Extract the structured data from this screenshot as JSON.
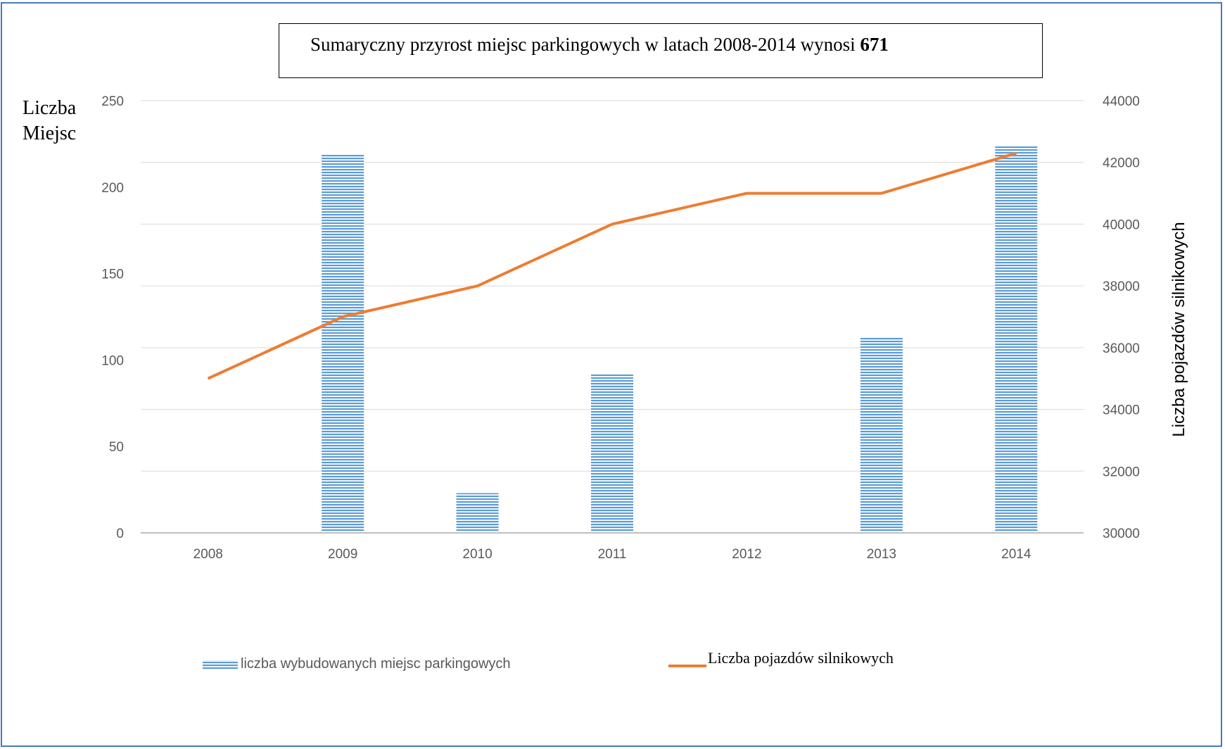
{
  "header": {
    "title_prefix": "Sumaryczny przyrost miejsc parkingowych w latach 2008-2014 wynosi ",
    "title_value": "671"
  },
  "axes": {
    "left_title_line1": "Liczba",
    "left_title_line2": "Miejsc",
    "right_title": "Liczba pojazdów silnikowych"
  },
  "legend": {
    "bar_label": "liczba wybudowanych miejsc parkingowych",
    "line_label": "Liczba  pojazdów   silnikowych"
  },
  "colors": {
    "bar": "#5b9bd5",
    "line": "#ed7d31",
    "grid": "#d9d9d9",
    "axis": "#bfbfbf"
  },
  "chart_data": {
    "type": "bar",
    "categories": [
      "2008",
      "2009",
      "2010",
      "2011",
      "2012",
      "2013",
      "2014"
    ],
    "series": [
      {
        "name": "liczba wybudowanych miejsc parkingowych",
        "type": "bar",
        "axis": "left",
        "values": [
          0,
          219,
          23,
          92,
          0,
          113,
          224
        ]
      },
      {
        "name": "Liczba  pojazdów   silnikowych",
        "type": "line",
        "axis": "right",
        "values": [
          35000,
          37000,
          38000,
          40000,
          41000,
          41000,
          42300
        ]
      }
    ],
    "ylim_left": [
      0,
      250
    ],
    "yticks_left": [
      0,
      50,
      100,
      150,
      200,
      250
    ],
    "ylim_right": [
      30000,
      44000
    ],
    "yticks_right": [
      30000,
      32000,
      34000,
      36000,
      38000,
      40000,
      42000,
      44000
    ],
    "grid": true,
    "legend_position": "bottom"
  }
}
